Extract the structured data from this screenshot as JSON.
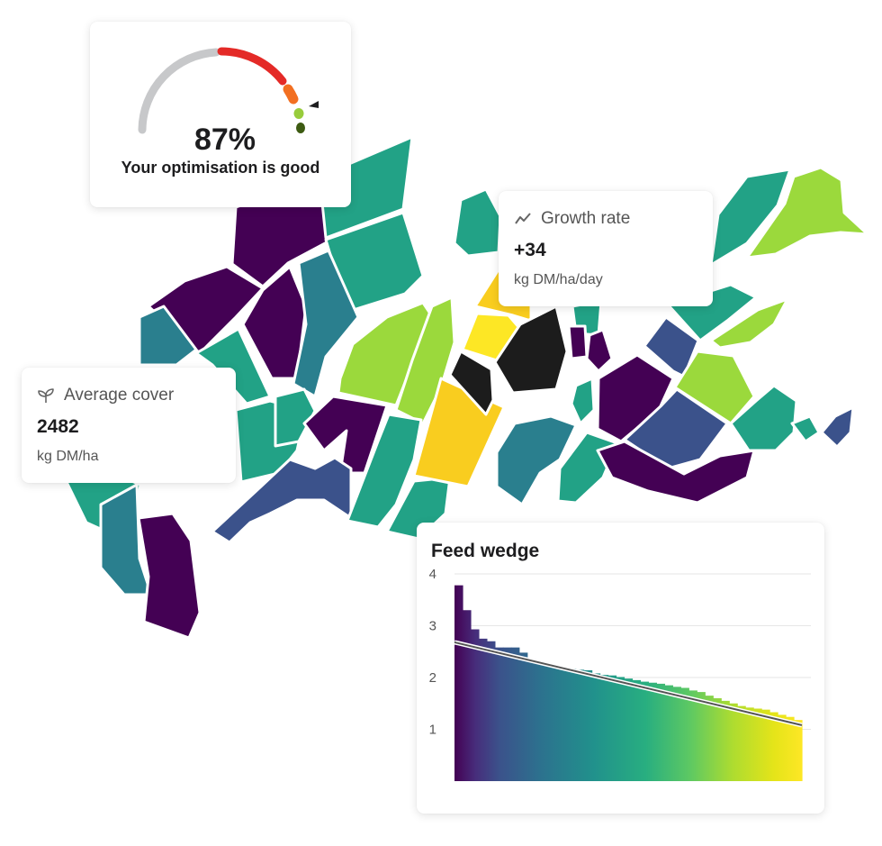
{
  "optimisation": {
    "value_label": "87%",
    "value": 0.87,
    "caption": "Your optimisation is good",
    "colors": [
      "#c7c8ca",
      "#e42a27",
      "#f26f21",
      "#98cc3c",
      "#3d5b12"
    ]
  },
  "growth": {
    "icon": "trend-line-icon",
    "title": "Growth rate",
    "value": "+34",
    "unit": "kg DM/ha/day"
  },
  "cover": {
    "icon": "sprout-icon",
    "title": "Average cover",
    "value": "2482",
    "unit": "kg DM/ha"
  },
  "map": {
    "palette": [
      "#440154",
      "#3b528b",
      "#2a7f8e",
      "#22a286",
      "#9bd93c",
      "#fde725",
      "#f9cd1f",
      "#1c1c1c"
    ]
  },
  "chart_data": {
    "type": "bar",
    "title": "Feed wedge",
    "ylim": [
      0,
      4
    ],
    "yticks": [
      1,
      2,
      3,
      4
    ],
    "grid": true,
    "values": [
      3.78,
      3.3,
      2.93,
      2.75,
      2.7,
      2.58,
      2.58,
      2.58,
      2.48,
      2.35,
      2.3,
      2.25,
      2.2,
      2.2,
      2.17,
      2.15,
      2.14,
      2.08,
      2.05,
      2.04,
      2.01,
      1.98,
      1.95,
      1.92,
      1.9,
      1.88,
      1.85,
      1.82,
      1.8,
      1.75,
      1.72,
      1.65,
      1.6,
      1.55,
      1.5,
      1.45,
      1.42,
      1.4,
      1.38,
      1.33,
      1.28,
      1.24,
      1.18
    ],
    "trend": {
      "start": 2.68,
      "end": 1.08
    },
    "color_scale": "viridis"
  }
}
